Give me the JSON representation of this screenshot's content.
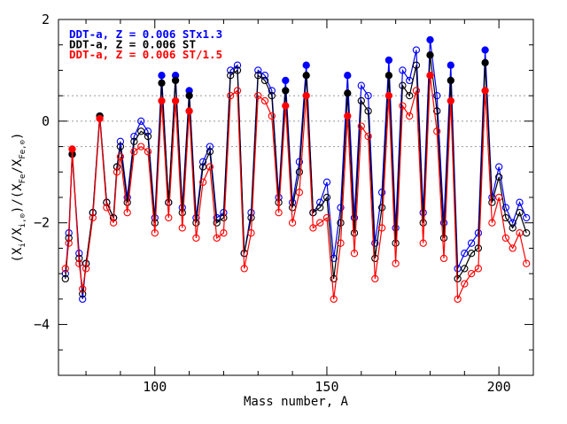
{
  "chart_data": {
    "type": "scatter",
    "xlabel": "Mass number, A",
    "ylabel": "(X_i/X_i,⊙)/(X_Fe/X_Fe,⊙)",
    "ylabel_parts": [
      "(X",
      "i",
      "/X",
      "i,⊙",
      ")/(X",
      "Fe",
      "/X",
      "Fe,⊙",
      ")"
    ],
    "xlim": [
      72,
      210
    ],
    "ylim": [
      -5.0,
      2.0
    ],
    "x_ticks": [
      100,
      150,
      200
    ],
    "y_ticks": [
      -4,
      -2,
      0,
      2
    ],
    "reference_lines": [
      0.5,
      0.0,
      -0.5
    ],
    "legend_position": "top-left",
    "series": [
      {
        "name": "DDT-a, Z = 0.006 STx1.3",
        "color": "#0000ff",
        "points": [
          [
            74,
            -3.0
          ],
          [
            75,
            -2.2
          ],
          [
            76,
            -0.65
          ],
          [
            78,
            -2.6
          ],
          [
            79,
            -3.5
          ],
          [
            80,
            -2.8
          ],
          [
            82,
            -1.8
          ],
          [
            84,
            0.1
          ],
          [
            86,
            -1.6
          ],
          [
            88,
            -1.9
          ],
          [
            89,
            -0.9
          ],
          [
            90,
            -0.4
          ],
          [
            92,
            -1.5
          ],
          [
            94,
            -0.3
          ],
          [
            96,
            0.0
          ],
          [
            98,
            -0.2
          ],
          [
            100,
            -1.9
          ],
          [
            102,
            0.9
          ],
          [
            104,
            -1.6
          ],
          [
            106,
            0.9
          ],
          [
            108,
            -1.7
          ],
          [
            110,
            0.6
          ],
          [
            112,
            -1.9
          ],
          [
            114,
            -0.8
          ],
          [
            116,
            -0.5
          ],
          [
            118,
            -1.9
          ],
          [
            120,
            -1.8
          ],
          [
            122,
            1.0
          ],
          [
            124,
            1.1
          ],
          [
            126,
            -2.6
          ],
          [
            128,
            -1.8
          ],
          [
            130,
            1.0
          ],
          [
            132,
            0.9
          ],
          [
            134,
            0.6
          ],
          [
            136,
            -1.5
          ],
          [
            138,
            0.8
          ],
          [
            140,
            -1.6
          ],
          [
            142,
            -0.8
          ],
          [
            144,
            1.1
          ],
          [
            146,
            -1.8
          ],
          [
            148,
            -1.6
          ],
          [
            150,
            -1.2
          ],
          [
            152,
            -2.7
          ],
          [
            154,
            -1.7
          ],
          [
            156,
            0.9
          ],
          [
            158,
            -1.9
          ],
          [
            160,
            0.7
          ],
          [
            162,
            0.5
          ],
          [
            164,
            -2.4
          ],
          [
            166,
            -1.4
          ],
          [
            168,
            1.2
          ],
          [
            170,
            -2.1
          ],
          [
            172,
            1.0
          ],
          [
            174,
            0.8
          ],
          [
            176,
            1.4
          ],
          [
            178,
            -1.8
          ],
          [
            180,
            1.6
          ],
          [
            182,
            0.5
          ],
          [
            184,
            -2.0
          ],
          [
            186,
            1.1
          ],
          [
            188,
            -2.9
          ],
          [
            190,
            -2.6
          ],
          [
            192,
            -2.4
          ],
          [
            194,
            -2.2
          ],
          [
            196,
            1.4
          ],
          [
            198,
            -1.5
          ],
          [
            200,
            -0.9
          ],
          [
            202,
            -1.7
          ],
          [
            204,
            -2.0
          ],
          [
            206,
            -1.6
          ],
          [
            208,
            -1.9
          ]
        ]
      },
      {
        "name": "DDT-a, Z = 0.006 ST",
        "color": "#000000",
        "points": [
          [
            74,
            -3.1
          ],
          [
            75,
            -2.3
          ],
          [
            76,
            -0.65
          ],
          [
            78,
            -2.7
          ],
          [
            79,
            -3.4
          ],
          [
            80,
            -2.8
          ],
          [
            82,
            -1.8
          ],
          [
            84,
            0.1
          ],
          [
            86,
            -1.6
          ],
          [
            88,
            -1.9
          ],
          [
            89,
            -0.9
          ],
          [
            90,
            -0.5
          ],
          [
            92,
            -1.6
          ],
          [
            94,
            -0.4
          ],
          [
            96,
            -0.2
          ],
          [
            98,
            -0.3
          ],
          [
            100,
            -2.0
          ],
          [
            102,
            0.75
          ],
          [
            104,
            -1.6
          ],
          [
            106,
            0.8
          ],
          [
            108,
            -1.8
          ],
          [
            110,
            0.5
          ],
          [
            112,
            -2.0
          ],
          [
            114,
            -0.9
          ],
          [
            116,
            -0.6
          ],
          [
            118,
            -2.0
          ],
          [
            120,
            -1.9
          ],
          [
            122,
            0.9
          ],
          [
            124,
            1.0
          ],
          [
            126,
            -2.6
          ],
          [
            128,
            -1.9
          ],
          [
            130,
            0.9
          ],
          [
            132,
            0.8
          ],
          [
            134,
            0.5
          ],
          [
            136,
            -1.6
          ],
          [
            138,
            0.6
          ],
          [
            140,
            -1.7
          ],
          [
            142,
            -1.0
          ],
          [
            144,
            0.9
          ],
          [
            146,
            -1.8
          ],
          [
            148,
            -1.7
          ],
          [
            150,
            -1.5
          ],
          [
            152,
            -3.1
          ],
          [
            154,
            -2.0
          ],
          [
            156,
            0.55
          ],
          [
            158,
            -2.2
          ],
          [
            160,
            0.4
          ],
          [
            162,
            0.2
          ],
          [
            164,
            -2.7
          ],
          [
            166,
            -1.7
          ],
          [
            168,
            0.9
          ],
          [
            170,
            -2.4
          ],
          [
            172,
            0.7
          ],
          [
            174,
            0.5
          ],
          [
            176,
            1.1
          ],
          [
            178,
            -2.0
          ],
          [
            180,
            1.3
          ],
          [
            182,
            0.2
          ],
          [
            184,
            -2.3
          ],
          [
            186,
            0.8
          ],
          [
            188,
            -3.1
          ],
          [
            190,
            -2.9
          ],
          [
            192,
            -2.6
          ],
          [
            194,
            -2.5
          ],
          [
            196,
            1.15
          ],
          [
            198,
            -1.6
          ],
          [
            200,
            -1.1
          ],
          [
            202,
            -1.9
          ],
          [
            204,
            -2.1
          ],
          [
            206,
            -1.8
          ],
          [
            208,
            -2.2
          ]
        ]
      },
      {
        "name": "DDT-a, Z = 0.006 ST/1.5",
        "color": "#ff0000",
        "points": [
          [
            74,
            -2.9
          ],
          [
            75,
            -2.4
          ],
          [
            76,
            -0.55
          ],
          [
            78,
            -2.8
          ],
          [
            79,
            -3.3
          ],
          [
            80,
            -2.9
          ],
          [
            82,
            -1.9
          ],
          [
            84,
            0.05
          ],
          [
            86,
            -1.7
          ],
          [
            88,
            -2.0
          ],
          [
            89,
            -1.0
          ],
          [
            90,
            -0.7
          ],
          [
            92,
            -1.8
          ],
          [
            94,
            -0.6
          ],
          [
            96,
            -0.5
          ],
          [
            98,
            -0.6
          ],
          [
            100,
            -2.2
          ],
          [
            102,
            0.4
          ],
          [
            104,
            -1.9
          ],
          [
            106,
            0.4
          ],
          [
            108,
            -2.1
          ],
          [
            110,
            0.2
          ],
          [
            112,
            -2.3
          ],
          [
            114,
            -1.2
          ],
          [
            116,
            -0.9
          ],
          [
            118,
            -2.3
          ],
          [
            120,
            -2.2
          ],
          [
            122,
            0.5
          ],
          [
            124,
            0.6
          ],
          [
            126,
            -2.9
          ],
          [
            128,
            -2.2
          ],
          [
            130,
            0.5
          ],
          [
            132,
            0.4
          ],
          [
            134,
            0.1
          ],
          [
            136,
            -1.8
          ],
          [
            138,
            0.3
          ],
          [
            140,
            -2.0
          ],
          [
            142,
            -1.4
          ],
          [
            144,
            0.5
          ],
          [
            146,
            -2.1
          ],
          [
            148,
            -2.0
          ],
          [
            150,
            -1.9
          ],
          [
            152,
            -3.5
          ],
          [
            154,
            -2.4
          ],
          [
            156,
            0.1
          ],
          [
            158,
            -2.6
          ],
          [
            160,
            -0.1
          ],
          [
            162,
            -0.3
          ],
          [
            164,
            -3.1
          ],
          [
            166,
            -2.1
          ],
          [
            168,
            0.5
          ],
          [
            170,
            -2.8
          ],
          [
            172,
            0.3
          ],
          [
            174,
            0.1
          ],
          [
            176,
            0.6
          ],
          [
            178,
            -2.4
          ],
          [
            180,
            0.9
          ],
          [
            182,
            -0.2
          ],
          [
            184,
            -2.7
          ],
          [
            186,
            0.4
          ],
          [
            188,
            -3.5
          ],
          [
            190,
            -3.2
          ],
          [
            192,
            -3.0
          ],
          [
            194,
            -2.9
          ],
          [
            196,
            0.6
          ],
          [
            198,
            -2.0
          ],
          [
            200,
            -1.5
          ],
          [
            202,
            -2.3
          ],
          [
            204,
            -2.5
          ],
          [
            206,
            -2.2
          ],
          [
            208,
            -2.8
          ]
        ]
      }
    ]
  }
}
